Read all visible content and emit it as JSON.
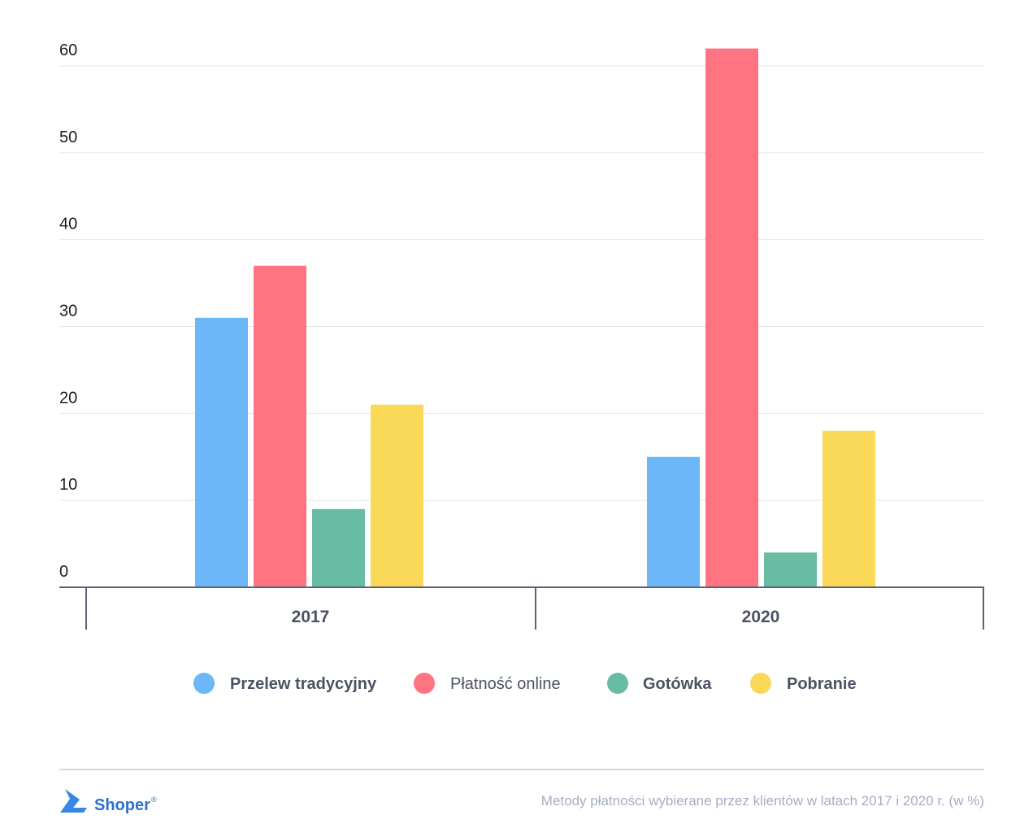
{
  "chart_data": {
    "type": "bar",
    "categories": [
      "2017",
      "2020"
    ],
    "series": [
      {
        "name": "Przelew tradycyjny",
        "color": "#6bb7f7",
        "values": [
          31,
          15
        ]
      },
      {
        "name": "Płatność online",
        "color": "#ff7480",
        "values": [
          37,
          62
        ]
      },
      {
        "name": "Gotówka",
        "color": "#68bca4",
        "values": [
          9,
          4
        ]
      },
      {
        "name": "Pobranie",
        "color": "#f9d957",
        "values": [
          21,
          18
        ]
      }
    ],
    "yticks": [
      "0",
      "10",
      "20",
      "30",
      "40",
      "50",
      "60"
    ],
    "ylim": [
      0,
      62
    ],
    "grid": true,
    "legend": "bottom",
    "title": "",
    "xlabel": "",
    "ylabel": ""
  },
  "footer": {
    "caption": "Metody płatności wybierane przez klientów w latach 2017 i 2020 r. (w %)",
    "brand": "Shoper",
    "brand_mark": "®"
  }
}
